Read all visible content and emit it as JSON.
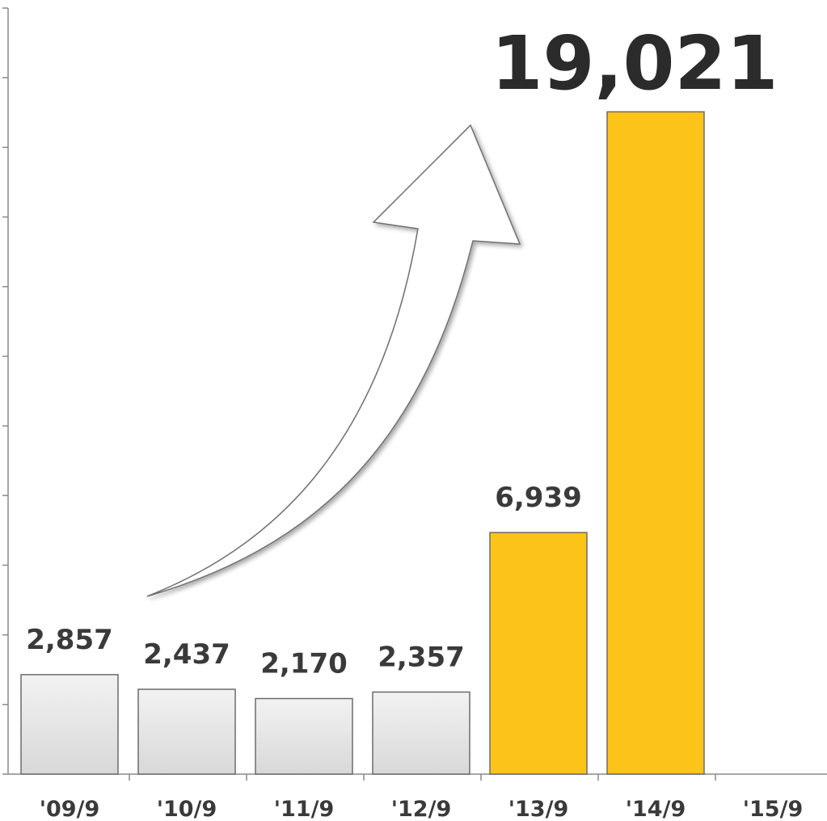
{
  "chart_data": {
    "type": "bar",
    "title": "",
    "xlabel": "",
    "ylabel": "",
    "categories": [
      "'09/9",
      "'10/9",
      "'11/9",
      "'12/9",
      "'13/9",
      "'14/9",
      "'15/9"
    ],
    "values": [
      2857,
      2437,
      2170,
      2357,
      6939,
      19021,
      null
    ],
    "value_labels": [
      "2,857",
      "2,437",
      "2,170",
      "2,357",
      "6,939",
      "",
      ""
    ],
    "highlight_label": "19,021",
    "ylim": [
      0,
      22000
    ],
    "y_ticks_count": 11,
    "grid": false,
    "legend": "none",
    "colors": {
      "past": "#e2e2e2",
      "recent": "#fcc419",
      "bar_border": "#6b6b6b",
      "axis": "#8a8a8a",
      "text": "#3a3a3a"
    },
    "highlight_indices": [
      4,
      5
    ],
    "annotation": "upward-growth-arrow"
  }
}
